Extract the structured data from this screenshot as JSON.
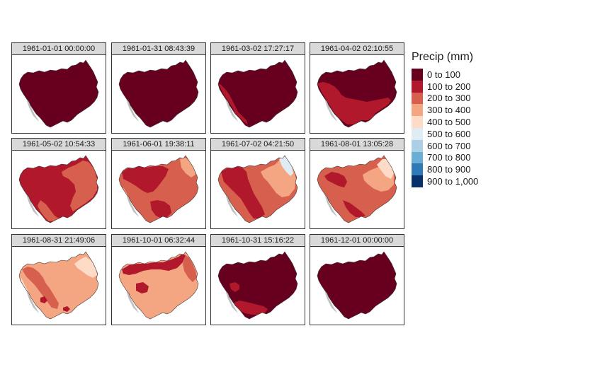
{
  "legend": {
    "title": "Precip (mm)",
    "classes": [
      {
        "label": "0 to 100",
        "color": "#67001f"
      },
      {
        "label": "100 to 200",
        "color": "#b2182b"
      },
      {
        "label": "200 to 300",
        "color": "#d6604d"
      },
      {
        "label": "300 to 400",
        "color": "#f4a582"
      },
      {
        "label": "400 to 500",
        "color": "#fddbc7"
      },
      {
        "label": "500 to 600",
        "color": "#e0ecf4"
      },
      {
        "label": "600 to 700",
        "color": "#abd0e6"
      },
      {
        "label": "700 to 800",
        "color": "#6aaed6"
      },
      {
        "label": "800 to 900",
        "color": "#2f79b5"
      },
      {
        "label": "900 to 1,000",
        "color": "#08306b"
      }
    ]
  },
  "panels": [
    {
      "date": "1961-01-01 00:00:00",
      "base_class": 0
    },
    {
      "date": "1961-01-31 08:43:39",
      "base_class": 0
    },
    {
      "date": "1961-03-02 17:27:17",
      "base_class": 0
    },
    {
      "date": "1961-04-02 02:10:55",
      "base_class": 0
    },
    {
      "date": "1961-05-02 10:54:33",
      "base_class": 1
    },
    {
      "date": "1961-06-01 19:38:11",
      "base_class": 2
    },
    {
      "date": "1961-07-02 04:21:50",
      "base_class": 2
    },
    {
      "date": "1961-08-01 13:05:28",
      "base_class": 2
    },
    {
      "date": "1961-08-31 21:49:06",
      "base_class": 3
    },
    {
      "date": "1961-10-01 06:32:44",
      "base_class": 3
    },
    {
      "date": "1961-10-31 15:16:22",
      "base_class": 0
    },
    {
      "date": "1961-12-01 00:00:00",
      "base_class": 0
    }
  ]
}
